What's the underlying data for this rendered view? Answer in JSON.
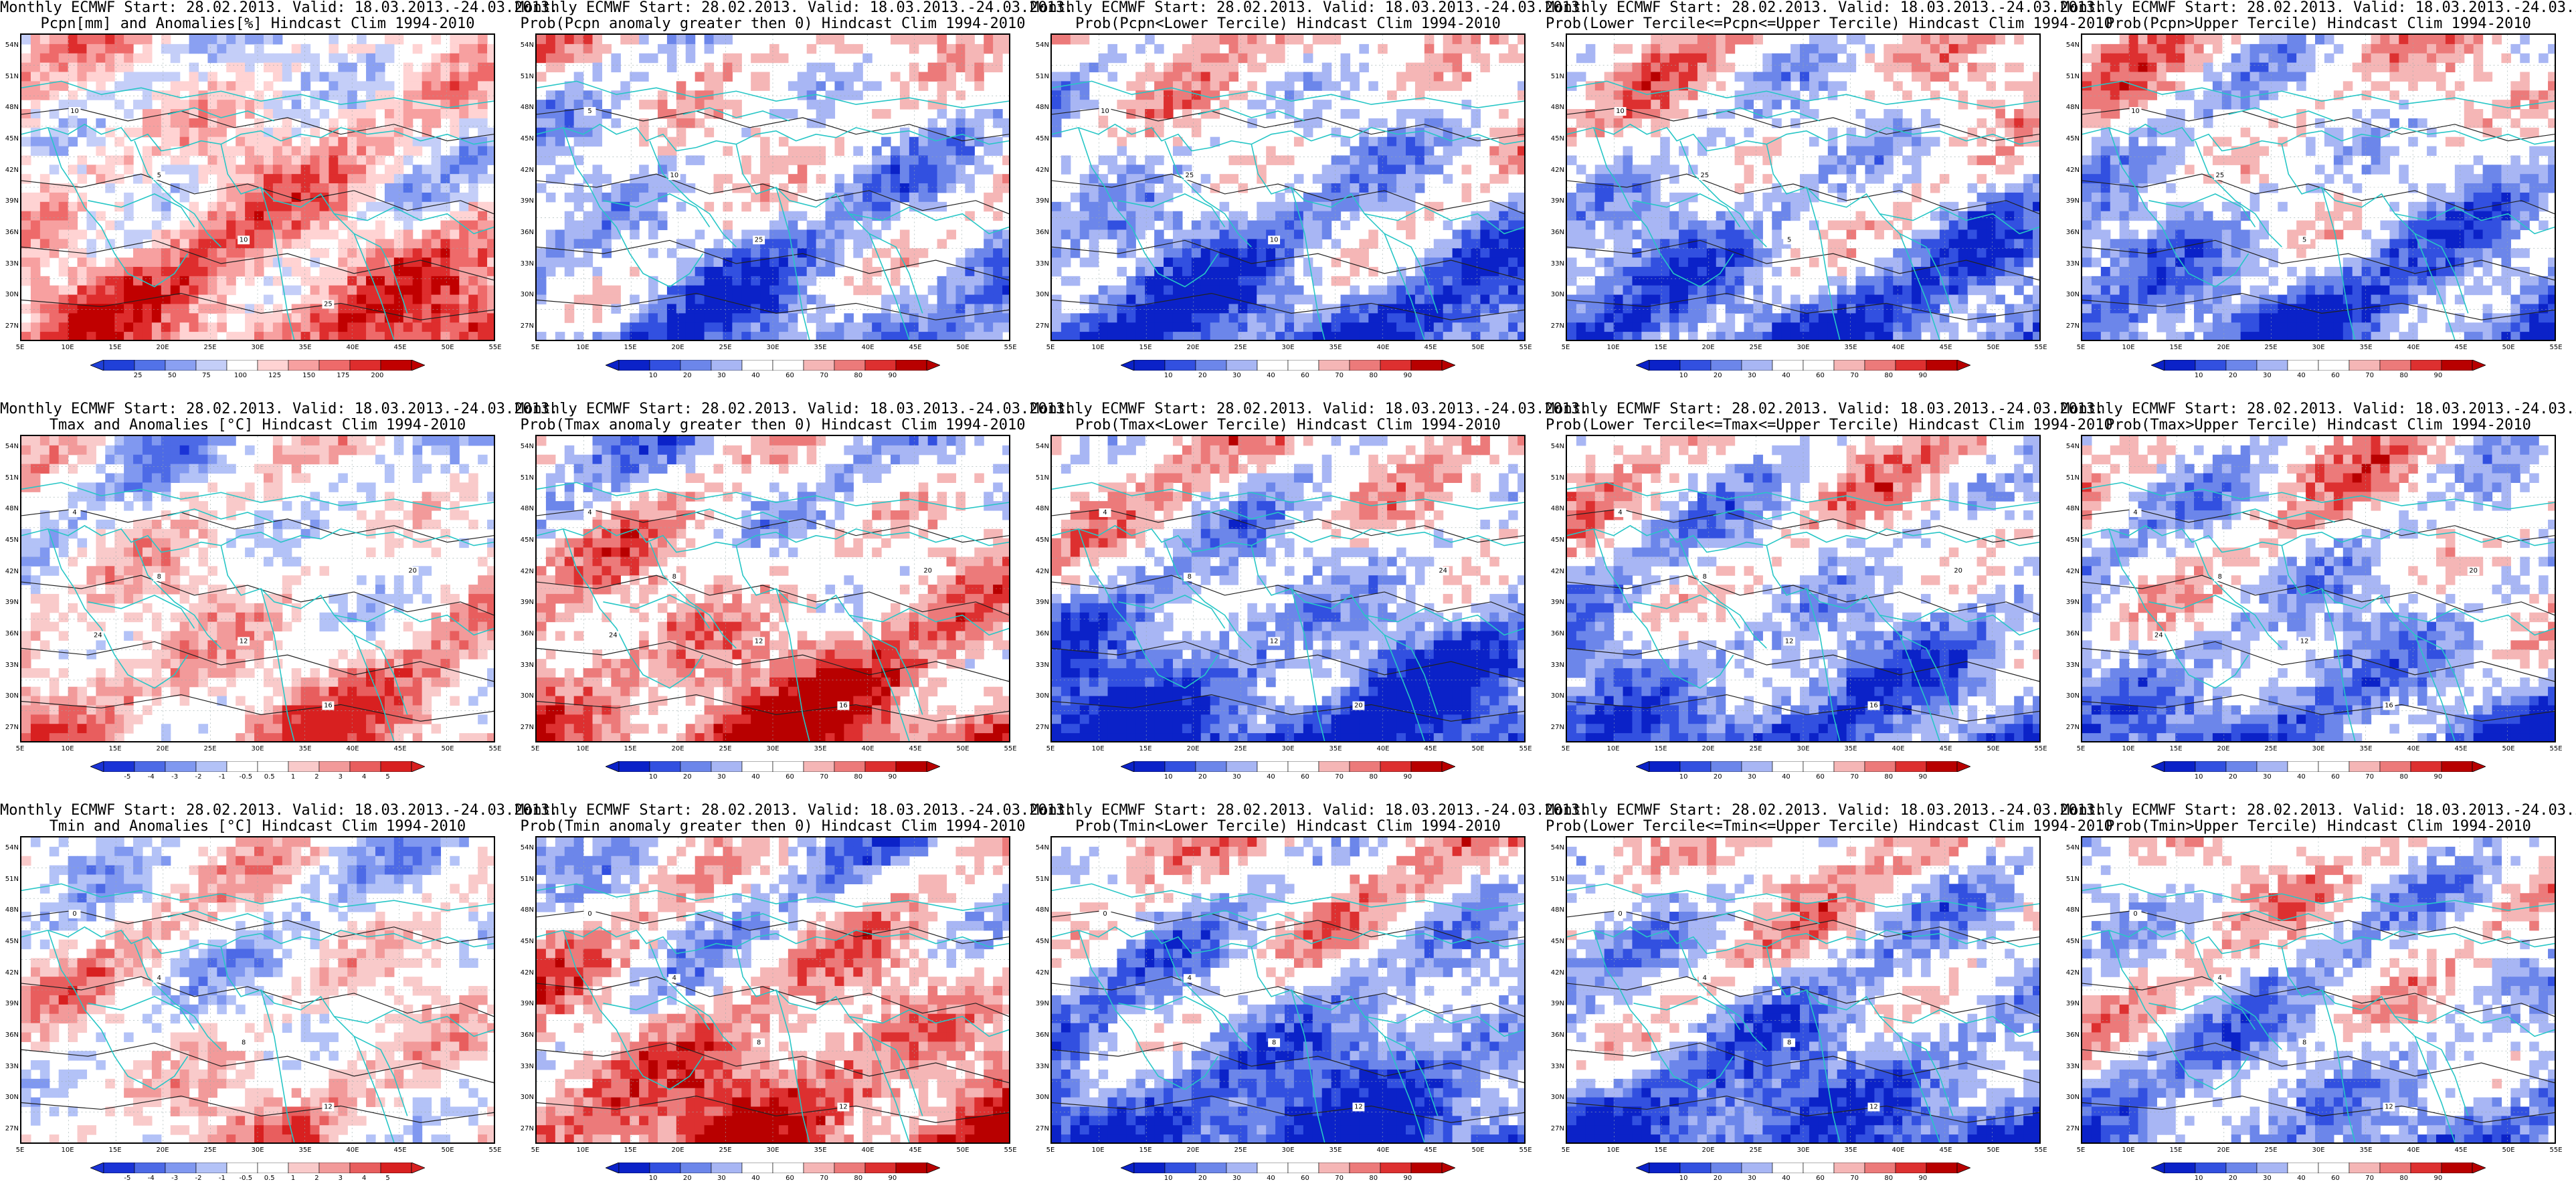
{
  "header": "Monthly ECMWF Start: 28.02.2013. Valid: 18.03.2013.-24.03.2013.",
  "x_ticks": [
    "5E",
    "10E",
    "15E",
    "20E",
    "25E",
    "30E",
    "35E",
    "40E",
    "45E",
    "50E",
    "55E"
  ],
  "y_ticks": [
    "54N",
    "51N",
    "48N",
    "45N",
    "42N",
    "39N",
    "36N",
    "33N",
    "30N",
    "27N"
  ],
  "palettes": {
    "anom_rain": [
      "#2040d8",
      "#5272e8",
      "#8aa0f2",
      "#c4cef8",
      "#ffffff",
      "#ffd3d3",
      "#f7a0a0",
      "#ee6a6a",
      "#de2d2d",
      "#c00000"
    ],
    "anom_temp": [
      "#1a33d6",
      "#4d6ae6",
      "#8098f0",
      "#b3c2f7",
      "#ffffff",
      "#ffffff",
      "#f9caca",
      "#f29a9a",
      "#e85e5e",
      "#d82020"
    ],
    "prob": [
      "#0b22c8",
      "#3250e0",
      "#6c86ea",
      "#a8b6f4",
      "#ffffff",
      "#ffffff",
      "#f5b6b6",
      "#ec7a7a",
      "#dd3030",
      "#b80000"
    ]
  },
  "panels": [
    {
      "id": "pcpn-anom",
      "subtitle": "Pcpn[mm] and Anomalies[%] Hindcast Clim 1994-2010",
      "palette": "anom_rain",
      "bias": 0.15,
      "colorbar_labels": [
        "25",
        "50",
        "75",
        "100",
        "125",
        "150",
        "175",
        "200"
      ],
      "contour_labels": [
        "10",
        "5",
        "10",
        "25"
      ]
    },
    {
      "id": "pcpn-prob-gt0",
      "subtitle": "Prob(Pcpn anomaly greater then 0) Hindcast Clim 1994-2010",
      "palette": "prob",
      "bias": -0.15,
      "colorbar_labels": [
        "10",
        "20",
        "30",
        "40",
        "60",
        "70",
        "80",
        "90"
      ],
      "contour_labels": [
        "5",
        "10",
        "25"
      ]
    },
    {
      "id": "pcpn-prob-lower",
      "subtitle": "Prob(Pcpn<Lower Tercile) Hindcast Clim 1994-2010",
      "palette": "prob",
      "bias": -0.25,
      "colorbar_labels": [
        "10",
        "20",
        "30",
        "40",
        "60",
        "70",
        "80",
        "90"
      ],
      "contour_labels": [
        "10",
        "25",
        "10"
      ]
    },
    {
      "id": "pcpn-prob-middle",
      "subtitle": "Prob(Lower Tercile<=Pcpn<=Upper Tercile) Hindcast Clim 1994-2010",
      "palette": "prob",
      "bias": -0.2,
      "colorbar_labels": [
        "10",
        "20",
        "30",
        "40",
        "60",
        "70",
        "80",
        "90"
      ],
      "contour_labels": [
        "10",
        "25",
        "5"
      ]
    },
    {
      "id": "pcpn-prob-upper",
      "subtitle": "Prob(Pcpn>Upper Tercile) Hindcast Clim 1994-2010",
      "palette": "prob",
      "bias": -0.2,
      "colorbar_labels": [
        "10",
        "20",
        "30",
        "40",
        "60",
        "70",
        "80",
        "90"
      ],
      "contour_labels": [
        "10",
        "25",
        "5"
      ]
    },
    {
      "id": "tmax-anom",
      "subtitle": "Tmax and Anomalies [°C] Hindcast Clim 1994-2010",
      "palette": "anom_temp",
      "bias": 0.15,
      "colorbar_labels": [
        "-5",
        "-4",
        "-3",
        "-2",
        "-1",
        "-0.5",
        "0.5",
        "1",
        "2",
        "3",
        "4",
        "5"
      ],
      "contour_labels": [
        "4",
        "8",
        "12",
        "16",
        "20",
        "24"
      ]
    },
    {
      "id": "tmax-prob-gt0",
      "subtitle": "Prob(Tmax anomaly greater then 0) Hindcast Clim 1994-2010",
      "palette": "prob",
      "bias": 0.25,
      "colorbar_labels": [
        "10",
        "20",
        "30",
        "40",
        "60",
        "70",
        "80",
        "90"
      ],
      "contour_labels": [
        "4",
        "8",
        "12",
        "16",
        "20",
        "24"
      ]
    },
    {
      "id": "tmax-prob-lower",
      "subtitle": "Prob(Tmax<Lower Tercile) Hindcast Clim 1994-2010",
      "palette": "prob",
      "bias": -0.3,
      "colorbar_labels": [
        "10",
        "20",
        "30",
        "40",
        "60",
        "70",
        "80",
        "90"
      ],
      "contour_labels": [
        "4",
        "8",
        "12",
        "20",
        "24"
      ]
    },
    {
      "id": "tmax-prob-middle",
      "subtitle": "Prob(Lower Tercile<=Tmax<=Upper Tercile) Hindcast Clim 1994-2010",
      "palette": "prob",
      "bias": -0.2,
      "colorbar_labels": [
        "10",
        "20",
        "30",
        "40",
        "60",
        "70",
        "80",
        "90"
      ],
      "contour_labels": [
        "4",
        "8",
        "12",
        "16",
        "20"
      ]
    },
    {
      "id": "tmax-prob-upper",
      "subtitle": "Prob(Tmax>Upper Tercile) Hindcast Clim 1994-2010",
      "palette": "prob",
      "bias": -0.15,
      "colorbar_labels": [
        "10",
        "20",
        "30",
        "40",
        "60",
        "70",
        "80",
        "90"
      ],
      "contour_labels": [
        "4",
        "8",
        "12",
        "16",
        "20",
        "24"
      ]
    },
    {
      "id": "tmin-anom",
      "subtitle": "Tmin and Anomalies [°C] Hindcast Clim 1994-2010",
      "palette": "anom_temp",
      "bias": 0.05,
      "colorbar_labels": [
        "-5",
        "-4",
        "-3",
        "-2",
        "-1",
        "-0.5",
        "0.5",
        "1",
        "2",
        "3",
        "4",
        "5"
      ],
      "contour_labels": [
        "0",
        "4",
        "8",
        "12"
      ]
    },
    {
      "id": "tmin-prob-gt0",
      "subtitle": "Prob(Tmin anomaly greater then 0) Hindcast Clim 1994-2010",
      "palette": "prob",
      "bias": 0.25,
      "colorbar_labels": [
        "10",
        "20",
        "30",
        "40",
        "60",
        "70",
        "80",
        "90"
      ],
      "contour_labels": [
        "0",
        "4",
        "8",
        "12"
      ]
    },
    {
      "id": "tmin-prob-lower",
      "subtitle": "Prob(Tmin<Lower Tercile) Hindcast Clim 1994-2010",
      "palette": "prob",
      "bias": -0.3,
      "colorbar_labels": [
        "10",
        "20",
        "30",
        "40",
        "60",
        "70",
        "80",
        "90"
      ],
      "contour_labels": [
        "0",
        "4",
        "8",
        "12"
      ]
    },
    {
      "id": "tmin-prob-middle",
      "subtitle": "Prob(Lower Tercile<=Tmin<=Upper Tercile) Hindcast Clim 1994-2010",
      "palette": "prob",
      "bias": -0.25,
      "colorbar_labels": [
        "10",
        "20",
        "30",
        "40",
        "60",
        "70",
        "80",
        "90"
      ],
      "contour_labels": [
        "0",
        "4",
        "8",
        "12"
      ]
    },
    {
      "id": "tmin-prob-upper",
      "subtitle": "Prob(Tmin>Upper Tercile) Hindcast Clim 1994-2010",
      "palette": "prob",
      "bias": -0.1,
      "colorbar_labels": [
        "10",
        "20",
        "30",
        "40",
        "60",
        "70",
        "80",
        "90"
      ],
      "contour_labels": [
        "0",
        "4",
        "8",
        "12"
      ]
    }
  ]
}
